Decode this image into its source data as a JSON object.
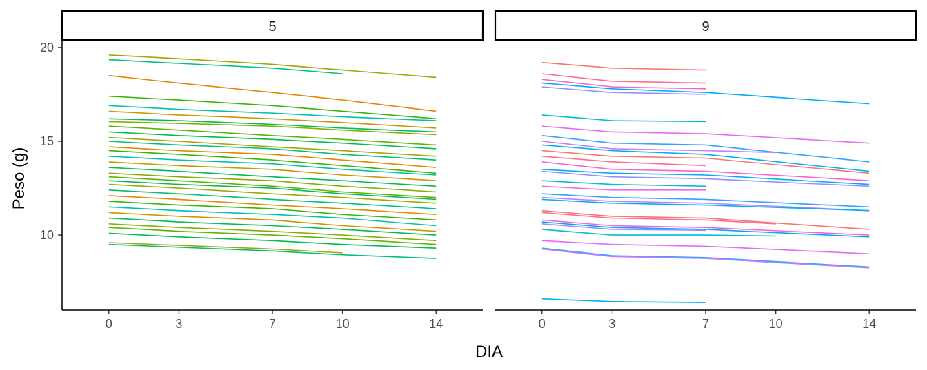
{
  "chart_data": {
    "type": "line",
    "xlabel": "DIA",
    "ylabel": "Peso (g)",
    "x_ticks": [
      0,
      3,
      7,
      10,
      14
    ],
    "y_ticks": [
      10,
      15,
      20
    ],
    "xlim": [
      -2,
      16
    ],
    "ylim": [
      6,
      20.4
    ],
    "grid": false,
    "legend": "none",
    "panels": [
      {
        "label": "5",
        "colors": [
          "#a3a500",
          "#00bf7d",
          "#e58700",
          "#39b600",
          "#00c0af",
          "#c99800",
          "#00bc59",
          "#85ad00",
          "#5eb300",
          "#00bb4e"
        ],
        "series": [
          {
            "x": [
              0,
              3,
              7,
              10,
              14
            ],
            "y": [
              19.6,
              19.4,
              19.1,
              18.8,
              18.4
            ]
          },
          {
            "x": [
              0,
              3,
              7,
              10
            ],
            "y": [
              19.35,
              19.15,
              18.9,
              18.6
            ]
          },
          {
            "x": [
              0,
              3,
              7,
              10,
              14
            ],
            "y": [
              18.5,
              18.1,
              17.6,
              17.2,
              16.6
            ]
          },
          {
            "x": [
              0,
              3,
              7,
              10,
              14
            ],
            "y": [
              17.4,
              17.2,
              16.9,
              16.6,
              16.2
            ]
          },
          {
            "x": [
              0,
              3,
              7,
              10,
              14
            ],
            "y": [
              16.9,
              16.7,
              16.5,
              16.3,
              16.1
            ]
          },
          {
            "x": [
              0,
              3,
              7,
              10,
              14
            ],
            "y": [
              16.6,
              16.4,
              16.2,
              16.0,
              15.7
            ]
          },
          {
            "x": [
              0,
              3,
              7,
              10,
              14
            ],
            "y": [
              16.2,
              16.1,
              15.9,
              15.7,
              15.5
            ]
          },
          {
            "x": [
              0,
              3,
              7,
              10,
              14
            ],
            "y": [
              16.05,
              15.95,
              15.8,
              15.6,
              15.35
            ]
          },
          {
            "x": [
              0,
              3,
              7,
              10,
              14
            ],
            "y": [
              15.8,
              15.6,
              15.3,
              15.1,
              14.8
            ]
          },
          {
            "x": [
              0,
              3,
              7,
              10,
              14
            ],
            "y": [
              15.5,
              15.3,
              15.1,
              14.9,
              14.6
            ]
          },
          {
            "x": [
              0,
              3,
              7,
              10,
              14
            ],
            "y": [
              15.2,
              15.0,
              14.7,
              14.5,
              14.2
            ]
          },
          {
            "x": [
              0,
              3,
              7,
              10,
              14
            ],
            "y": [
              15.0,
              14.8,
              14.6,
              14.3,
              14.0
            ]
          },
          {
            "x": [
              0,
              3,
              7,
              10,
              14
            ],
            "y": [
              14.7,
              14.5,
              14.3,
              14.0,
              13.6
            ]
          },
          {
            "x": [
              0,
              3,
              7,
              10,
              14
            ],
            "y": [
              14.5,
              14.3,
              14.0,
              13.7,
              13.3
            ]
          },
          {
            "x": [
              0,
              3,
              7,
              10,
              14
            ],
            "y": [
              14.2,
              14.0,
              13.8,
              13.5,
              13.2
            ]
          },
          {
            "x": [
              0,
              3,
              7,
              10,
              14
            ],
            "y": [
              13.9,
              13.7,
              13.5,
              13.2,
              12.9
            ]
          },
          {
            "x": [
              0,
              3,
              7,
              10,
              14
            ],
            "y": [
              13.6,
              13.4,
              13.1,
              12.9,
              12.6
            ]
          },
          {
            "x": [
              0,
              3,
              7,
              10,
              14
            ],
            "y": [
              13.3,
              13.1,
              12.9,
              12.6,
              12.3
            ]
          },
          {
            "x": [
              0,
              3,
              7,
              10,
              14
            ],
            "y": [
              13.1,
              12.9,
              12.6,
              12.3,
              12.0
            ]
          },
          {
            "x": [
              0,
              3,
              7,
              10,
              14
            ],
            "y": [
              12.9,
              12.7,
              12.5,
              12.2,
              11.9
            ]
          },
          {
            "x": [
              0,
              3,
              7,
              10,
              14
            ],
            "y": [
              12.7,
              12.5,
              12.2,
              12.0,
              11.7
            ]
          },
          {
            "x": [
              0,
              3,
              7,
              10,
              14
            ],
            "y": [
              12.4,
              12.2,
              11.9,
              11.7,
              11.4
            ]
          },
          {
            "x": [
              0,
              3,
              7,
              10,
              14
            ],
            "y": [
              12.1,
              11.9,
              11.6,
              11.4,
              11.1
            ]
          },
          {
            "x": [
              0,
              3,
              7,
              10,
              14
            ],
            "y": [
              11.8,
              11.6,
              11.4,
              11.1,
              10.8
            ]
          },
          {
            "x": [
              0,
              3,
              7,
              10,
              14
            ],
            "y": [
              11.5,
              11.3,
              11.1,
              10.9,
              10.5
            ]
          },
          {
            "x": [
              0,
              3,
              7,
              10,
              14
            ],
            "y": [
              11.2,
              11.0,
              10.8,
              10.5,
              10.2
            ]
          },
          {
            "x": [
              0,
              3,
              7,
              10,
              14
            ],
            "y": [
              10.9,
              10.7,
              10.5,
              10.3,
              10.0
            ]
          },
          {
            "x": [
              0,
              3,
              7,
              10,
              14
            ],
            "y": [
              10.6,
              10.4,
              10.2,
              10.0,
              9.7
            ]
          },
          {
            "x": [
              0,
              3,
              7,
              10,
              14
            ],
            "y": [
              10.4,
              10.2,
              10.0,
              9.8,
              9.5
            ]
          },
          {
            "x": [
              0,
              3,
              7,
              10,
              14
            ],
            "y": [
              10.1,
              9.9,
              9.7,
              9.5,
              9.3
            ]
          },
          {
            "x": [
              0,
              3,
              7,
              10
            ],
            "y": [
              9.6,
              9.45,
              9.25,
              9.05
            ]
          },
          {
            "x": [
              0,
              3,
              7,
              10,
              14
            ],
            "y": [
              9.5,
              9.35,
              9.15,
              8.95,
              8.75
            ]
          }
        ]
      },
      {
        "label": "9",
        "colors": [
          "#f8766d",
          "#ff6c91",
          "#fe61cf",
          "#00a9ff",
          "#9590ff",
          "#00bcd8",
          "#e76bf3",
          "#35a2ff",
          "#c77cff",
          "#00b0f6"
        ],
        "series": [
          {
            "x": [
              0,
              3,
              7
            ],
            "y": [
              19.2,
              18.9,
              18.8
            ]
          },
          {
            "x": [
              0,
              3,
              7
            ],
            "y": [
              18.6,
              18.2,
              18.1
            ]
          },
          {
            "x": [
              0,
              3,
              7
            ],
            "y": [
              18.3,
              17.9,
              17.8
            ]
          },
          {
            "x": [
              0,
              3,
              7,
              14
            ],
            "y": [
              18.1,
              17.8,
              17.6,
              17.0
            ]
          },
          {
            "x": [
              0,
              3,
              7
            ],
            "y": [
              17.9,
              17.6,
              17.5
            ]
          },
          {
            "x": [
              0,
              3,
              7
            ],
            "y": [
              16.4,
              16.1,
              16.05
            ]
          },
          {
            "x": [
              0,
              3,
              7,
              14
            ],
            "y": [
              15.8,
              15.5,
              15.4,
              14.9
            ]
          },
          {
            "x": [
              0,
              3,
              7,
              14
            ],
            "y": [
              15.3,
              14.9,
              14.8,
              13.9
            ]
          },
          {
            "x": [
              0,
              3,
              7,
              10
            ],
            "y": [
              15.0,
              14.6,
              14.5,
              14.4
            ]
          },
          {
            "x": [
              0,
              3,
              7,
              14
            ],
            "y": [
              14.8,
              14.5,
              14.3,
              13.4
            ]
          },
          {
            "x": [
              0,
              3,
              7,
              14
            ],
            "y": [
              14.5,
              14.2,
              14.1,
              13.3
            ]
          },
          {
            "x": [
              0,
              3,
              7
            ],
            "y": [
              14.2,
              13.9,
              13.7
            ]
          },
          {
            "x": [
              0,
              3,
              7,
              14
            ],
            "y": [
              13.9,
              13.5,
              13.4,
              12.9
            ]
          },
          {
            "x": [
              0,
              3,
              7,
              14
            ],
            "y": [
              13.5,
              13.3,
              13.2,
              12.7
            ]
          },
          {
            "x": [
              0,
              3,
              7,
              14
            ],
            "y": [
              13.4,
              13.1,
              13.0,
              12.6
            ]
          },
          {
            "x": [
              0,
              3,
              7
            ],
            "y": [
              12.9,
              12.7,
              12.6
            ]
          },
          {
            "x": [
              0,
              3,
              7
            ],
            "y": [
              12.6,
              12.4,
              12.4
            ]
          },
          {
            "x": [
              0,
              3,
              7,
              14
            ],
            "y": [
              12.2,
              12.0,
              11.9,
              11.5
            ]
          },
          {
            "x": [
              0,
              3,
              7,
              14
            ],
            "y": [
              12.0,
              11.8,
              11.7,
              11.3
            ]
          },
          {
            "x": [
              0,
              3,
              7,
              14
            ],
            "y": [
              11.9,
              11.7,
              11.6,
              11.3
            ]
          },
          {
            "x": [
              0,
              3,
              7,
              14
            ],
            "y": [
              11.3,
              11.0,
              10.9,
              10.3
            ]
          },
          {
            "x": [
              0,
              3,
              7,
              10
            ],
            "y": [
              11.2,
              10.9,
              10.8,
              10.6
            ]
          },
          {
            "x": [
              0,
              3,
              7,
              14
            ],
            "y": [
              10.8,
              10.5,
              10.4,
              10.0
            ]
          },
          {
            "x": [
              0,
              3,
              7,
              14
            ],
            "y": [
              10.7,
              10.4,
              10.3,
              9.9
            ]
          },
          {
            "x": [
              0,
              3,
              7
            ],
            "y": [
              10.6,
              10.3,
              10.25
            ]
          },
          {
            "x": [
              0,
              3,
              7,
              10
            ],
            "y": [
              10.3,
              10.0,
              10.0,
              9.95
            ]
          },
          {
            "x": [
              0,
              3,
              7,
              14
            ],
            "y": [
              9.7,
              9.5,
              9.4,
              9.0
            ]
          },
          {
            "x": [
              0,
              3,
              7,
              14
            ],
            "y": [
              9.3,
              8.9,
              8.8,
              8.3
            ]
          },
          {
            "x": [
              0,
              3,
              7,
              14
            ],
            "y": [
              9.25,
              8.85,
              8.75,
              8.25
            ]
          },
          {
            "x": [
              0,
              3,
              7
            ],
            "y": [
              6.6,
              6.45,
              6.4
            ]
          }
        ]
      }
    ]
  }
}
